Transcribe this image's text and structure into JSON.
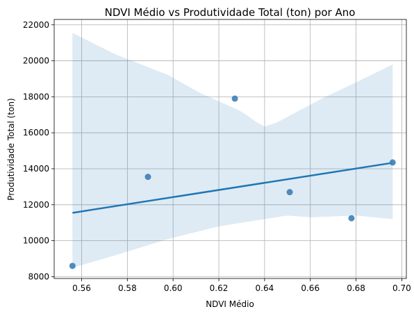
{
  "chart_data": {
    "type": "scatter",
    "title": "NDVI Médio vs Produtividade Total (ton) por Ano",
    "xlabel": "NDVI Médio",
    "ylabel": "Produtividade Total (ton)",
    "xlim": [
      0.548,
      0.702
    ],
    "ylim": [
      7900,
      22300
    ],
    "xticks": [
      0.56,
      0.58,
      0.6,
      0.62,
      0.64,
      0.66,
      0.68,
      0.7
    ],
    "xtick_labels": [
      "0.56",
      "0.58",
      "0.60",
      "0.62",
      "0.64",
      "0.66",
      "0.68",
      "0.70"
    ],
    "yticks": [
      8000,
      10000,
      12000,
      14000,
      16000,
      18000,
      20000,
      22000
    ],
    "ytick_labels": [
      "8000",
      "10000",
      "12000",
      "14000",
      "16000",
      "18000",
      "20000",
      "22000"
    ],
    "grid": true,
    "points": [
      {
        "x": 0.556,
        "y": 8600
      },
      {
        "x": 0.589,
        "y": 13550
      },
      {
        "x": 0.627,
        "y": 17900
      },
      {
        "x": 0.651,
        "y": 12700
      },
      {
        "x": 0.678,
        "y": 11250
      },
      {
        "x": 0.696,
        "y": 14350
      }
    ],
    "regression_line": [
      {
        "x": 0.556,
        "y": 11550
      },
      {
        "x": 0.696,
        "y": 14330
      }
    ],
    "confidence_band": {
      "upper": [
        {
          "x": 0.556,
          "y": 21550
        },
        {
          "x": 0.575,
          "y": 20350
        },
        {
          "x": 0.598,
          "y": 19200
        },
        {
          "x": 0.612,
          "y": 18200
        },
        {
          "x": 0.628,
          "y": 17300
        },
        {
          "x": 0.632,
          "y": 17000
        },
        {
          "x": 0.637,
          "y": 16550
        },
        {
          "x": 0.64,
          "y": 16350
        },
        {
          "x": 0.645,
          "y": 16550
        },
        {
          "x": 0.665,
          "y": 17900
        },
        {
          "x": 0.68,
          "y": 18800
        },
        {
          "x": 0.696,
          "y": 19800
        }
      ],
      "lower": [
        {
          "x": 0.556,
          "y": 8500
        },
        {
          "x": 0.575,
          "y": 9200
        },
        {
          "x": 0.598,
          "y": 10100
        },
        {
          "x": 0.62,
          "y": 10800
        },
        {
          "x": 0.64,
          "y": 11200
        },
        {
          "x": 0.65,
          "y": 11400
        },
        {
          "x": 0.66,
          "y": 11300
        },
        {
          "x": 0.68,
          "y": 11400
        },
        {
          "x": 0.696,
          "y": 11200
        }
      ]
    },
    "colors": {
      "point": "#3d7fb8",
      "line": "#1f77b4",
      "band": "#1f77b4"
    }
  }
}
